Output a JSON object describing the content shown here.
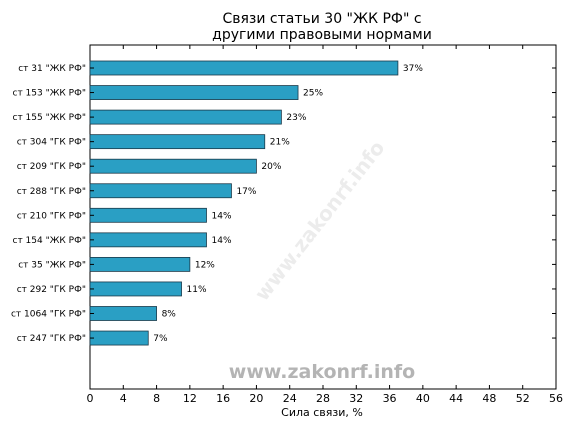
{
  "chart_data": {
    "type": "bar",
    "orientation": "horizontal",
    "title_lines": [
      "Связи статьи 30 \"ЖК РФ\" с",
      "другими правовыми нормами"
    ],
    "xlabel": "Сила связи, %",
    "ylabel": "",
    "xlim": [
      0,
      56
    ],
    "xticks": [
      0,
      4,
      8,
      12,
      16,
      20,
      24,
      28,
      32,
      36,
      40,
      44,
      48,
      52,
      56
    ],
    "categories": [
      "ст 31 \"ЖК РФ\"",
      "ст 153 \"ЖК РФ\"",
      "ст 155 \"ЖК РФ\"",
      "ст 304 \"ГК РФ\"",
      "ст 209 \"ГК РФ\"",
      "ст 288 \"ГК РФ\"",
      "ст 210 \"ГК РФ\"",
      "ст 154 \"ЖК РФ\"",
      "ст 35 \"ЖК РФ\"",
      "ст 292 \"ГК РФ\"",
      "ст 1064 \"ГК РФ\"",
      "ст 247 \"ГК РФ\""
    ],
    "values": [
      37,
      25,
      23,
      21,
      20,
      17,
      14,
      14,
      12,
      11,
      8,
      7
    ],
    "value_labels": [
      "37%",
      "25%",
      "23%",
      "21%",
      "20%",
      "17%",
      "14%",
      "14%",
      "12%",
      "11%",
      "8%",
      "7%"
    ],
    "bar_color": "#2a9fc4",
    "bar_edge_color": "#1b3a4a",
    "grid": false
  },
  "watermark": {
    "bottom_text": "www.zakonrf.info",
    "diagonal_text": "www.zakonrf.info"
  }
}
